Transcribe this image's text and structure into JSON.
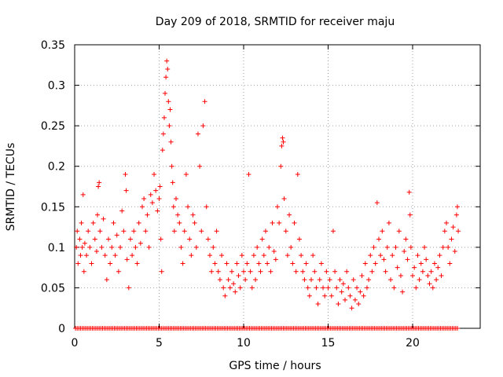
{
  "chart_data": {
    "type": "scatter",
    "title": "Day 209 of 2018, SRMTID for receiver maju",
    "xlabel": "GPS time / hours",
    "ylabel": "SRMTID / TECUs",
    "xlim": [
      0,
      24
    ],
    "ylim": [
      0,
      0.35
    ],
    "xticks": [
      0,
      5,
      10,
      15,
      20
    ],
    "xtick_labels": [
      "0",
      "5",
      "10",
      "15",
      "20"
    ],
    "yticks": [
      0,
      0.05,
      0.1,
      0.15,
      0.2,
      0.25,
      0.3,
      0.35
    ],
    "ytick_labels": [
      "0",
      "0.05",
      "0.1",
      "0.15",
      "0.2",
      "0.25",
      "0.3",
      "0.35"
    ],
    "grid": true,
    "marker": "+",
    "color": "#ff0000",
    "series": [
      {
        "name": "SRMTID",
        "points": [
          [
            0.1,
            0.1
          ],
          [
            0.15,
            0.12
          ],
          [
            0.2,
            0.08
          ],
          [
            0.3,
            0.11
          ],
          [
            0.35,
            0.09
          ],
          [
            0.4,
            0.13
          ],
          [
            0.45,
            0.1
          ],
          [
            0.5,
            0.165
          ],
          [
            0.55,
            0.07
          ],
          [
            0.6,
            0.105
          ],
          [
            0.7,
            0.09
          ],
          [
            0.8,
            0.12
          ],
          [
            0.9,
            0.1
          ],
          [
            1.0,
            0.08
          ],
          [
            1.1,
            0.13
          ],
          [
            1.2,
            0.11
          ],
          [
            1.3,
            0.095
          ],
          [
            1.35,
            0.14
          ],
          [
            1.4,
            0.175
          ],
          [
            1.45,
            0.18
          ],
          [
            1.5,
            0.12
          ],
          [
            1.6,
            0.1
          ],
          [
            1.7,
            0.135
          ],
          [
            1.8,
            0.09
          ],
          [
            1.9,
            0.06
          ],
          [
            2.0,
            0.11
          ],
          [
            2.1,
            0.08
          ],
          [
            2.2,
            0.1
          ],
          [
            2.3,
            0.13
          ],
          [
            2.4,
            0.09
          ],
          [
            2.5,
            0.115
          ],
          [
            2.6,
            0.07
          ],
          [
            2.7,
            0.1
          ],
          [
            2.8,
            0.145
          ],
          [
            2.9,
            0.12
          ],
          [
            3.0,
            0.19
          ],
          [
            3.05,
            0.17
          ],
          [
            3.1,
            0.085
          ],
          [
            3.2,
            0.05
          ],
          [
            3.3,
            0.11
          ],
          [
            3.4,
            0.09
          ],
          [
            3.5,
            0.12
          ],
          [
            3.6,
            0.1
          ],
          [
            3.7,
            0.08
          ],
          [
            3.8,
            0.13
          ],
          [
            3.9,
            0.105
          ],
          [
            4.0,
            0.15
          ],
          [
            4.1,
            0.16
          ],
          [
            4.2,
            0.12
          ],
          [
            4.3,
            0.14
          ],
          [
            4.4,
            0.1
          ],
          [
            4.5,
            0.165
          ],
          [
            4.6,
            0.155
          ],
          [
            4.7,
            0.19
          ],
          [
            4.8,
            0.17
          ],
          [
            4.9,
            0.145
          ],
          [
            5.0,
            0.16
          ],
          [
            5.05,
            0.175
          ],
          [
            5.1,
            0.11
          ],
          [
            5.15,
            0.07
          ],
          [
            5.2,
            0.22
          ],
          [
            5.25,
            0.24
          ],
          [
            5.3,
            0.26
          ],
          [
            5.35,
            0.29
          ],
          [
            5.4,
            0.31
          ],
          [
            5.45,
            0.33
          ],
          [
            5.5,
            0.32
          ],
          [
            5.55,
            0.28
          ],
          [
            5.6,
            0.25
          ],
          [
            5.65,
            0.27
          ],
          [
            5.7,
            0.23
          ],
          [
            5.75,
            0.2
          ],
          [
            5.8,
            0.18
          ],
          [
            5.85,
            0.15
          ],
          [
            5.9,
            0.12
          ],
          [
            6.0,
            0.16
          ],
          [
            6.1,
            0.14
          ],
          [
            6.2,
            0.13
          ],
          [
            6.3,
            0.1
          ],
          [
            6.4,
            0.08
          ],
          [
            6.5,
            0.12
          ],
          [
            6.6,
            0.19
          ],
          [
            6.7,
            0.15
          ],
          [
            6.8,
            0.11
          ],
          [
            6.9,
            0.09
          ],
          [
            7.0,
            0.14
          ],
          [
            7.1,
            0.13
          ],
          [
            7.2,
            0.1
          ],
          [
            7.3,
            0.24
          ],
          [
            7.4,
            0.2
          ],
          [
            7.5,
            0.12
          ],
          [
            7.6,
            0.25
          ],
          [
            7.7,
            0.28
          ],
          [
            7.8,
            0.15
          ],
          [
            7.9,
            0.11
          ],
          [
            8.0,
            0.09
          ],
          [
            8.1,
            0.07
          ],
          [
            8.2,
            0.1
          ],
          [
            8.3,
            0.08
          ],
          [
            8.4,
            0.12
          ],
          [
            8.5,
            0.07
          ],
          [
            8.6,
            0.06
          ],
          [
            8.7,
            0.09
          ],
          [
            8.8,
            0.05
          ],
          [
            8.9,
            0.04
          ],
          [
            9.0,
            0.08
          ],
          [
            9.1,
            0.06
          ],
          [
            9.2,
            0.05
          ],
          [
            9.3,
            0.07
          ],
          [
            9.4,
            0.055
          ],
          [
            9.5,
            0.045
          ],
          [
            9.6,
            0.08
          ],
          [
            9.7,
            0.065
          ],
          [
            9.8,
            0.05
          ],
          [
            9.9,
            0.09
          ],
          [
            10.0,
            0.07
          ],
          [
            10.1,
            0.06
          ],
          [
            10.2,
            0.08
          ],
          [
            10.3,
            0.19
          ],
          [
            10.4,
            0.07
          ],
          [
            10.5,
            0.05
          ],
          [
            10.6,
            0.09
          ],
          [
            10.7,
            0.06
          ],
          [
            10.8,
            0.1
          ],
          [
            10.9,
            0.08
          ],
          [
            11.0,
            0.07
          ],
          [
            11.1,
            0.11
          ],
          [
            11.2,
            0.09
          ],
          [
            11.3,
            0.12
          ],
          [
            11.4,
            0.08
          ],
          [
            11.5,
            0.1
          ],
          [
            11.6,
            0.07
          ],
          [
            11.7,
            0.13
          ],
          [
            11.8,
            0.095
          ],
          [
            11.9,
            0.085
          ],
          [
            12.0,
            0.15
          ],
          [
            12.1,
            0.13
          ],
          [
            12.2,
            0.2
          ],
          [
            12.25,
            0.225
          ],
          [
            12.3,
            0.235
          ],
          [
            12.35,
            0.23
          ],
          [
            12.4,
            0.16
          ],
          [
            12.5,
            0.12
          ],
          [
            12.6,
            0.09
          ],
          [
            12.7,
            0.14
          ],
          [
            12.8,
            0.1
          ],
          [
            12.9,
            0.08
          ],
          [
            13.0,
            0.13
          ],
          [
            13.1,
            0.07
          ],
          [
            13.2,
            0.19
          ],
          [
            13.3,
            0.11
          ],
          [
            13.4,
            0.09
          ],
          [
            13.5,
            0.07
          ],
          [
            13.6,
            0.06
          ],
          [
            13.7,
            0.08
          ],
          [
            13.8,
            0.05
          ],
          [
            13.9,
            0.04
          ],
          [
            14.0,
            0.06
          ],
          [
            14.1,
            0.09
          ],
          [
            14.2,
            0.07
          ],
          [
            14.3,
            0.05
          ],
          [
            14.4,
            0.03
          ],
          [
            14.5,
            0.06
          ],
          [
            14.6,
            0.08
          ],
          [
            14.7,
            0.05
          ],
          [
            14.8,
            0.04
          ],
          [
            14.9,
            0.07
          ],
          [
            15.0,
            0.05
          ],
          [
            15.1,
            0.06
          ],
          [
            15.2,
            0.04
          ],
          [
            15.3,
            0.12
          ],
          [
            15.4,
            0.07
          ],
          [
            15.5,
            0.05
          ],
          [
            15.6,
            0.03
          ],
          [
            15.7,
            0.06
          ],
          [
            15.8,
            0.045
          ],
          [
            15.9,
            0.055
          ],
          [
            16.0,
            0.035
          ],
          [
            16.1,
            0.07
          ],
          [
            16.2,
            0.05
          ],
          [
            16.3,
            0.04
          ],
          [
            16.4,
            0.025
          ],
          [
            16.5,
            0.06
          ],
          [
            16.6,
            0.035
          ],
          [
            16.7,
            0.05
          ],
          [
            16.8,
            0.03
          ],
          [
            16.9,
            0.045
          ],
          [
            17.0,
            0.065
          ],
          [
            17.1,
            0.04
          ],
          [
            17.2,
            0.08
          ],
          [
            17.3,
            0.05
          ],
          [
            17.4,
            0.06
          ],
          [
            17.5,
            0.09
          ],
          [
            17.6,
            0.07
          ],
          [
            17.7,
            0.1
          ],
          [
            17.8,
            0.08
          ],
          [
            17.9,
            0.155
          ],
          [
            18.0,
            0.11
          ],
          [
            18.1,
            0.09
          ],
          [
            18.2,
            0.12
          ],
          [
            18.3,
            0.085
          ],
          [
            18.4,
            0.07
          ],
          [
            18.5,
            0.1
          ],
          [
            18.6,
            0.13
          ],
          [
            18.7,
            0.06
          ],
          [
            18.8,
            0.09
          ],
          [
            18.9,
            0.05
          ],
          [
            19.0,
            0.1
          ],
          [
            19.1,
            0.075
          ],
          [
            19.2,
            0.12
          ],
          [
            19.3,
            0.065
          ],
          [
            19.4,
            0.045
          ],
          [
            19.5,
            0.095
          ],
          [
            19.6,
            0.11
          ],
          [
            19.7,
            0.085
          ],
          [
            19.8,
            0.168
          ],
          [
            19.85,
            0.14
          ],
          [
            19.9,
            0.1
          ],
          [
            20.0,
            0.065
          ],
          [
            20.1,
            0.075
          ],
          [
            20.2,
            0.05
          ],
          [
            20.3,
            0.09
          ],
          [
            20.4,
            0.06
          ],
          [
            20.5,
            0.08
          ],
          [
            20.6,
            0.07
          ],
          [
            20.7,
            0.1
          ],
          [
            20.8,
            0.085
          ],
          [
            20.9,
            0.065
          ],
          [
            21.0,
            0.055
          ],
          [
            21.1,
            0.07
          ],
          [
            21.2,
            0.05
          ],
          [
            21.3,
            0.08
          ],
          [
            21.4,
            0.06
          ],
          [
            21.5,
            0.075
          ],
          [
            21.6,
            0.09
          ],
          [
            21.7,
            0.065
          ],
          [
            21.8,
            0.1
          ],
          [
            21.9,
            0.12
          ],
          [
            22.0,
            0.13
          ],
          [
            22.1,
            0.1
          ],
          [
            22.2,
            0.08
          ],
          [
            22.3,
            0.11
          ],
          [
            22.4,
            0.125
          ],
          [
            22.5,
            0.095
          ],
          [
            22.6,
            0.14
          ],
          [
            22.65,
            0.15
          ],
          [
            22.7,
            0.12
          ]
        ]
      },
      {
        "name": "zero-baseline",
        "x_range": [
          0.05,
          22.7
        ],
        "x_step": 0.1,
        "y": 0
      }
    ]
  }
}
